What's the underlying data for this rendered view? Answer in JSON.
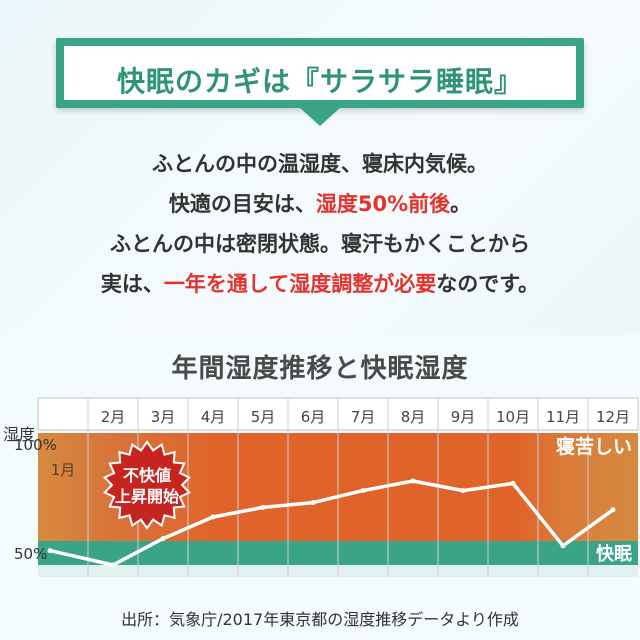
{
  "banner": {
    "title": "快眠のカギは『サラサラ睡眠』"
  },
  "intro": {
    "lines": [
      [
        {
          "text": "ふとんの中の温湿度、寝床内気候。"
        }
      ],
      [
        {
          "text": "快適の目安は、"
        },
        {
          "text": "湿度50%前後",
          "hl": true
        },
        {
          "text": "。"
        }
      ],
      [
        {
          "text": "ふとんの中は密閉状態。寝汗もかくことから"
        }
      ],
      [
        {
          "text": "実は、"
        },
        {
          "text": "一年を通して湿度調整が必要",
          "hl": true
        },
        {
          "text": "なのです。"
        }
      ]
    ]
  },
  "colors": {
    "green": "#3aa487",
    "red": "#e5322d",
    "zone_orange": "#e0642a",
    "zone_edge": "#d6893f",
    "comfort_band": "#3aa487",
    "line": "#ffffff"
  },
  "chart_data": {
    "type": "line",
    "title": "年間湿度推移と快眠湿度",
    "ylabel": "湿度",
    "categories": [
      "1月",
      "2月",
      "3月",
      "4月",
      "5月",
      "6月",
      "7月",
      "8月",
      "9月",
      "10月",
      "11月",
      "12月"
    ],
    "values": [
      51,
      45,
      56,
      65,
      69,
      71,
      76,
      80,
      76,
      79,
      53,
      68
    ],
    "ylim": [
      40,
      100
    ],
    "y_ticks": [
      {
        "value": 100,
        "label": "100%"
      },
      {
        "value": 50,
        "label": "50%"
      }
    ],
    "zones": [
      {
        "label": "寝苦しい",
        "from": 55,
        "to": 100
      },
      {
        "label": "快眠",
        "from": 45,
        "to": 55
      }
    ],
    "callout": "不快値\n上昇開始",
    "grid": true
  },
  "source": "出所：気象庁/2017年東京都の湿度推移データより作成"
}
